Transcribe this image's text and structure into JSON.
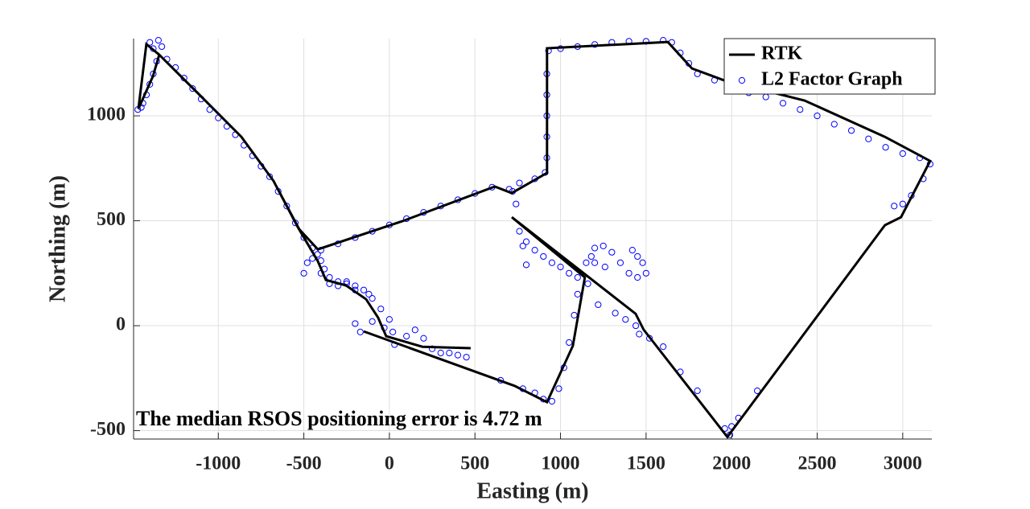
{
  "chart_data": {
    "type": "line",
    "x_label": "Easting (m)",
    "y_label": "Northing (m)",
    "annotation": "The median RSOS positioning error is 4.72 m",
    "xlim": [
      -1495,
      3170
    ],
    "ylim": [
      -540,
      1368
    ],
    "xticks": [
      -1000,
      -500,
      0,
      500,
      1000,
      1500,
      2000,
      2500,
      3000
    ],
    "yticks": [
      -500,
      0,
      500,
      1000
    ],
    "grid": true,
    "legend": "top-right",
    "series": [
      {
        "name": "RTK",
        "color": "#000000",
        "mode": "line",
        "x": [
          475,
          193,
          -19,
          -66,
          -136,
          -254,
          -371,
          -418,
          -536,
          -677,
          -865,
          -1100,
          -1345,
          -1420,
          -1467,
          -1382,
          -1345,
          -1100,
          -865,
          -677,
          -527,
          -418,
          75,
          616,
          715,
          921,
          921,
          1627,
          1768,
          1956,
          2426,
          2896,
          3160,
          2990,
          2896,
          1975,
          1486,
          1439,
          715,
          1142,
          1072,
          921,
          733,
          -150
        ],
        "y": [
          -107,
          -100,
          -50,
          38,
          126,
          192,
          218,
          307,
          471,
          690,
          900,
          1092,
          1291,
          1341,
          1034,
          1188,
          1291,
          1092,
          900,
          690,
          460,
          364,
          498,
          663,
          632,
          728,
          1322,
          1352,
          1226,
          1169,
          1073,
          900,
          785,
          517,
          479,
          -530,
          -19,
          57,
          517,
          230,
          -96,
          -364,
          -287,
          -27
        ]
      },
      {
        "name": "L2 Factor Graph",
        "color": "#0000ff",
        "mode": "marker",
        "x": [
          -1450,
          -1470,
          -1440,
          -1420,
          -1400,
          -1380,
          -1360,
          -1380,
          -1400,
          -1350,
          -1330,
          -1300,
          -1250,
          -1200,
          -1150,
          -1100,
          -1050,
          -1000,
          -950,
          -900,
          -850,
          -800,
          -750,
          -700,
          -650,
          -600,
          -550,
          -500,
          -450,
          -420,
          -400,
          -380,
          -350,
          -300,
          -250,
          -200,
          -150,
          -120,
          -400,
          -300,
          -200,
          -100,
          0,
          100,
          200,
          300,
          400,
          500,
          600,
          700,
          760,
          850,
          910,
          920,
          920,
          920,
          920,
          920,
          930,
          1000,
          1100,
          1200,
          1300,
          1400,
          1500,
          1600,
          1650,
          1700,
          1750,
          1800,
          1900,
          2000,
          2100,
          2200,
          2300,
          2400,
          2500,
          2600,
          2700,
          2800,
          2900,
          3000,
          3100,
          3160,
          3120,
          3050,
          3000,
          2950,
          2150,
          2040,
          2000,
          1990,
          1960,
          1800,
          1700,
          1600,
          1520,
          1460,
          1440,
          1380,
          1320,
          1220,
          1420,
          1450,
          1480,
          1500,
          1450,
          1400,
          1350,
          1300,
          1250,
          1200,
          1180,
          1200,
          1260,
          1150,
          1160,
          1100,
          1080,
          1050,
          1020,
          990,
          950,
          900,
          850,
          780,
          650,
          760,
          800,
          850,
          900,
          950,
          1000,
          1050,
          1100,
          800,
          780,
          740,
          720,
          -500,
          -480,
          -450,
          -400,
          -350,
          -300,
          -250,
          -200,
          -100,
          -50,
          0,
          -30,
          20,
          100,
          150,
          200,
          250,
          300,
          350,
          400,
          450,
          -100,
          -200,
          -170,
          30
        ],
        "y": [
          1040,
          1030,
          1060,
          1100,
          1150,
          1200,
          1260,
          1320,
          1350,
          1360,
          1330,
          1270,
          1230,
          1180,
          1130,
          1080,
          1030,
          990,
          950,
          910,
          860,
          810,
          760,
          710,
          640,
          570,
          490,
          420,
          370,
          340,
          310,
          270,
          230,
          210,
          200,
          190,
          170,
          150,
          360,
          390,
          420,
          450,
          480,
          510,
          540,
          570,
          600,
          630,
          660,
          650,
          680,
          700,
          730,
          800,
          900,
          1000,
          1100,
          1200,
          1310,
          1320,
          1330,
          1340,
          1350,
          1355,
          1355,
          1360,
          1350,
          1300,
          1250,
          1200,
          1170,
          1140,
          1110,
          1090,
          1060,
          1030,
          1000,
          960,
          930,
          890,
          850,
          820,
          800,
          770,
          700,
          620,
          580,
          570,
          -310,
          -440,
          -480,
          -520,
          -490,
          -310,
          -220,
          -100,
          -60,
          -40,
          0,
          30,
          60,
          100,
          360,
          330,
          300,
          250,
          230,
          250,
          300,
          350,
          380,
          370,
          330,
          300,
          280,
          300,
          200,
          150,
          50,
          -80,
          -200,
          -300,
          -360,
          -350,
          -320,
          -300,
          -260,
          450,
          400,
          360,
          330,
          300,
          280,
          250,
          230,
          290,
          380,
          580,
          640,
          250,
          300,
          320,
          250,
          200,
          190,
          210,
          170,
          130,
          80,
          30,
          -10,
          -30,
          -50,
          -20,
          -60,
          -110,
          -130,
          -130,
          -140,
          -150,
          20,
          10,
          -30,
          -90
        ]
      }
    ]
  }
}
